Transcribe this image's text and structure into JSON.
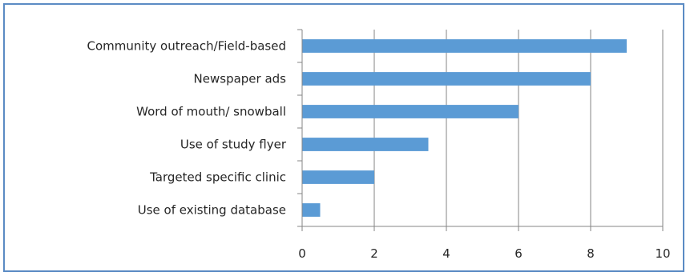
{
  "chart_data": {
    "type": "bar",
    "orientation": "horizontal",
    "categories": [
      "Community outreach/Field-based",
      "Newspaper ads",
      "Word of mouth/ snowball",
      "Use of study flyer",
      "Targeted specific clinic",
      "Use of existing database"
    ],
    "values": [
      9,
      8,
      6,
      3.5,
      2,
      0.5
    ],
    "title": "",
    "xlabel": "",
    "ylabel": "",
    "xlim": [
      0,
      10
    ],
    "xticks": [
      "0",
      "2",
      "4",
      "6",
      "8",
      "10"
    ],
    "grid": "vertical",
    "legend": "none",
    "colors": {
      "bar": "#5b9bd5",
      "grid": "#868686",
      "axis": "#868686",
      "frame": "#5b8bc4"
    }
  }
}
